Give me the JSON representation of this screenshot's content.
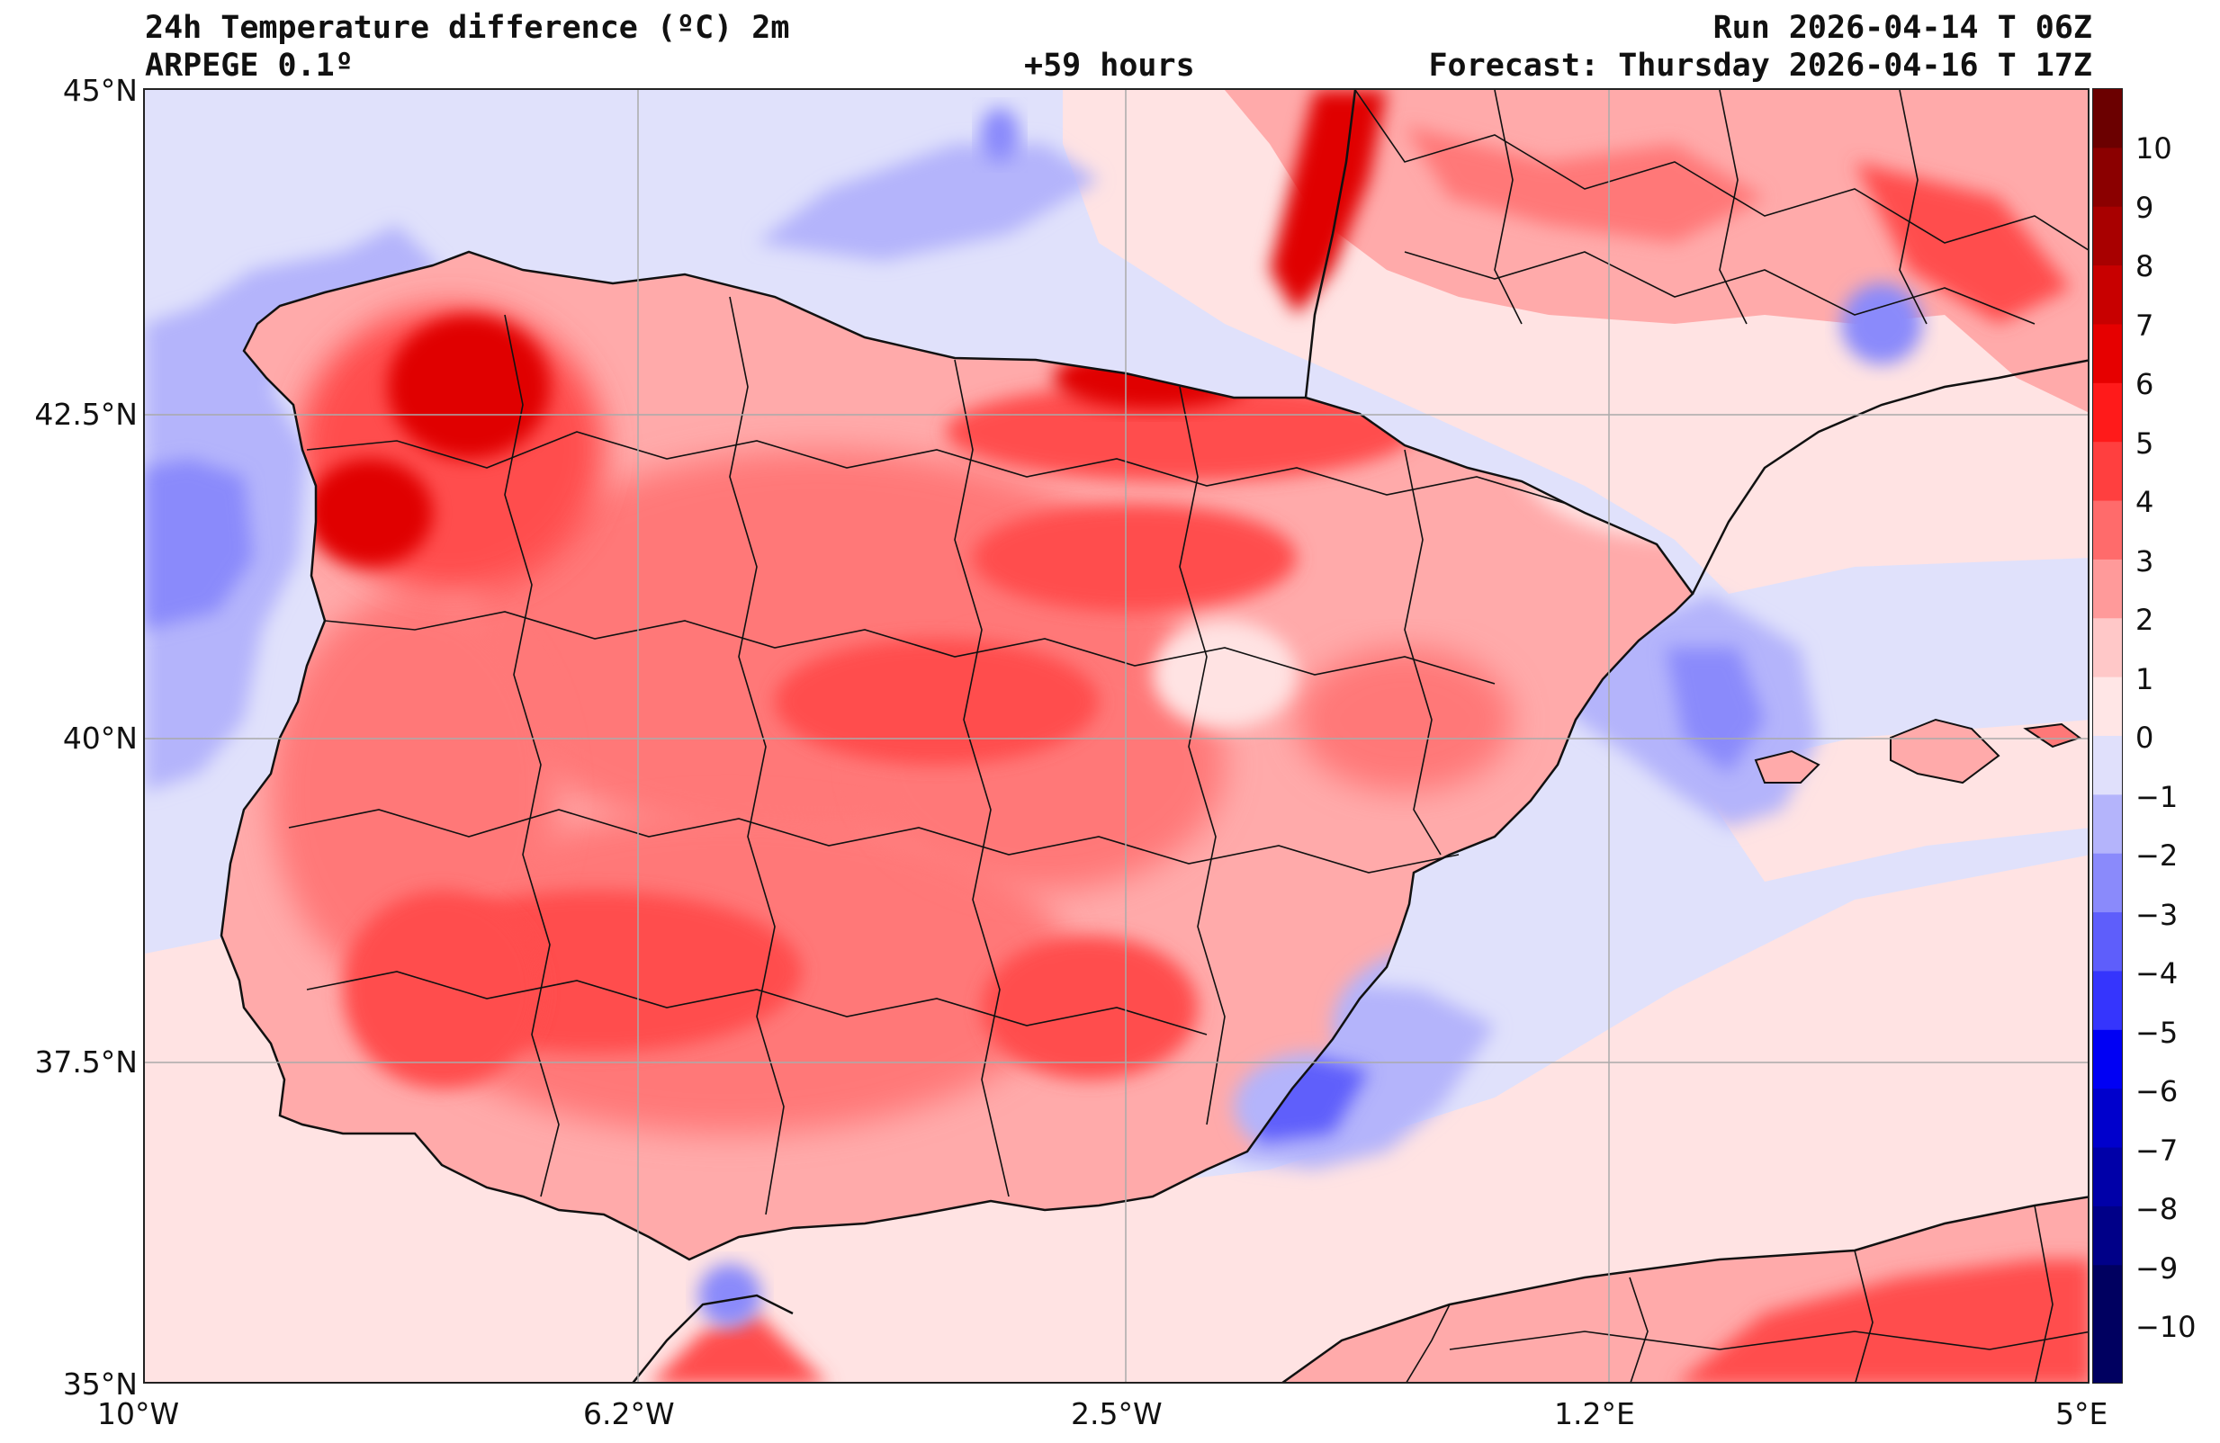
{
  "header": {
    "title": "24h Temperature difference (ºC) 2m",
    "model": "ARPEGE 0.1º",
    "lead_time": "+59 hours",
    "run": "Run 2026-04-14 T 06Z",
    "forecast": "Forecast: Thursday 2026-04-16 T 17Z"
  },
  "axes": {
    "lat_labels": [
      "45°N",
      "42.5°N",
      "40°N",
      "37.5°N",
      "35°N"
    ],
    "lon_labels": [
      "10°W",
      "6.2°W",
      "2.5°W",
      "1.2°E",
      "5°E"
    ]
  },
  "colorbar": {
    "labels": [
      "10",
      "9",
      "8",
      "7",
      "6",
      "5",
      "4",
      "3",
      "2",
      "1",
      "0",
      "−1",
      "−2",
      "−3",
      "−4",
      "−5",
      "−6",
      "−7",
      "−8",
      "−9",
      "−10"
    ],
    "colors": [
      "#6b0000",
      "#8b0000",
      "#a80000",
      "#c80000",
      "#e60000",
      "#ff1a1a",
      "#ff3f3f",
      "#ff6b6b",
      "#ff9a9a",
      "#ffc8c8",
      "#ffe6e6",
      "#e0e0fb",
      "#b4b4fb",
      "#8a8afb",
      "#5e5efb",
      "#3535fd",
      "#0000f4",
      "#0000cc",
      "#0000a8",
      "#000088",
      "#000060"
    ]
  },
  "map_colors": {
    "sea_warm": "#ffe3e3",
    "sea_cool": "#e0e1fb",
    "land_base": "#ffaaaa",
    "warm_mid": "#ff7878",
    "warm_high": "#ff4d4d",
    "warm_max": "#e00000",
    "cool_1": "#b4b4fb",
    "cool_2": "#8a8afb",
    "cool_3": "#5e5efb",
    "cool_4": "#2a2ad8",
    "coast": "#111111",
    "grid": "#aaaaaa"
  }
}
